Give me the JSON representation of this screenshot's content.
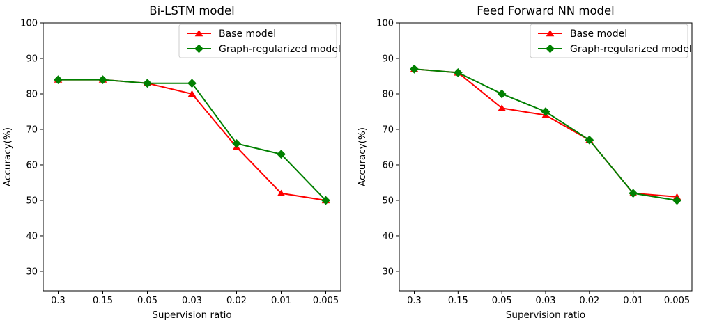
{
  "figure": {
    "background": "#ffffff",
    "red_color": "#ff0000",
    "green_color": "#008000"
  },
  "chart_data": [
    {
      "type": "line",
      "title": "Bi-LSTM model",
      "xlabel": "Supervision ratio",
      "ylabel": "Accuracy(%)",
      "categories": [
        "0.3",
        "0.15",
        "0.05",
        "0.03",
        "0.02",
        "0.01",
        "0.005"
      ],
      "yticks": [
        30,
        40,
        50,
        60,
        70,
        80,
        90,
        100
      ],
      "ylim": [
        24.5,
        100
      ],
      "grid": false,
      "legend_position": "upper right",
      "series": [
        {
          "name": "Base model",
          "color": "#ff0000",
          "marker": "triangle",
          "values": [
            84,
            84,
            83,
            80,
            65,
            52,
            50
          ]
        },
        {
          "name": "Graph-regularized model",
          "color": "#008000",
          "marker": "diamond",
          "values": [
            84,
            84,
            83,
            83,
            66,
            63,
            50
          ]
        }
      ]
    },
    {
      "type": "line",
      "title": "Feed Forward NN model",
      "xlabel": "Supervision ratio",
      "ylabel": "Accuracy(%)",
      "categories": [
        "0.3",
        "0.15",
        "0.05",
        "0.03",
        "0.02",
        "0.01",
        "0.005"
      ],
      "yticks": [
        30,
        40,
        50,
        60,
        70,
        80,
        90,
        100
      ],
      "ylim": [
        24.5,
        100
      ],
      "grid": false,
      "legend_position": "upper right",
      "series": [
        {
          "name": "Base model",
          "color": "#ff0000",
          "marker": "triangle",
          "values": [
            87,
            86,
            76,
            74,
            67,
            52,
            51
          ]
        },
        {
          "name": "Graph-regularized model",
          "color": "#008000",
          "marker": "diamond",
          "values": [
            87,
            86,
            80,
            75,
            67,
            52,
            50
          ]
        }
      ]
    }
  ]
}
